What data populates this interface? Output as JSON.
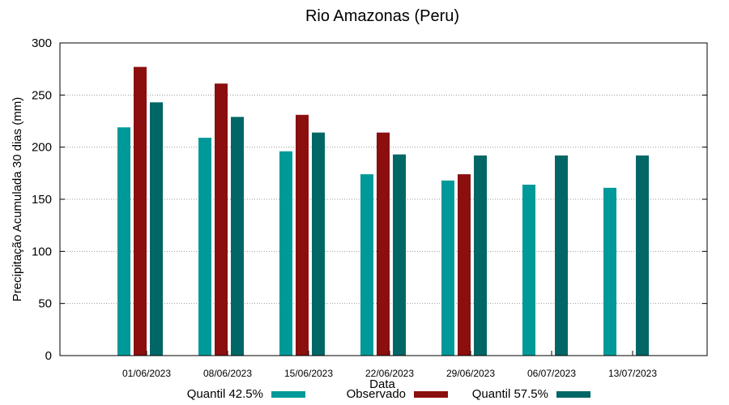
{
  "chart_data": {
    "type": "bar",
    "title": "Rio Amazonas (Peru)",
    "xlabel": "Data",
    "ylabel": "Precipitação Acumulada 30 dias (mm)",
    "ylim": [
      0,
      300
    ],
    "yticks": [
      0,
      50,
      100,
      150,
      200,
      250,
      300
    ],
    "grid": true,
    "legend_position": "bottom",
    "categories": [
      "01/06/2023",
      "08/06/2023",
      "15/06/2023",
      "22/06/2023",
      "29/06/2023",
      "06/07/2023",
      "13/07/2023"
    ],
    "series": [
      {
        "name": "Quantil 42.5%",
        "color": "#009999",
        "values": [
          219,
          209,
          196,
          174,
          168,
          164,
          161
        ]
      },
      {
        "name": "Observado",
        "color": "#8b0f0f",
        "values": [
          277,
          261,
          231,
          214,
          174,
          null,
          null
        ]
      },
      {
        "name": "Quantil 57.5%",
        "color": "#006666",
        "values": [
          243,
          229,
          214,
          193,
          192,
          192,
          192
        ]
      }
    ]
  }
}
